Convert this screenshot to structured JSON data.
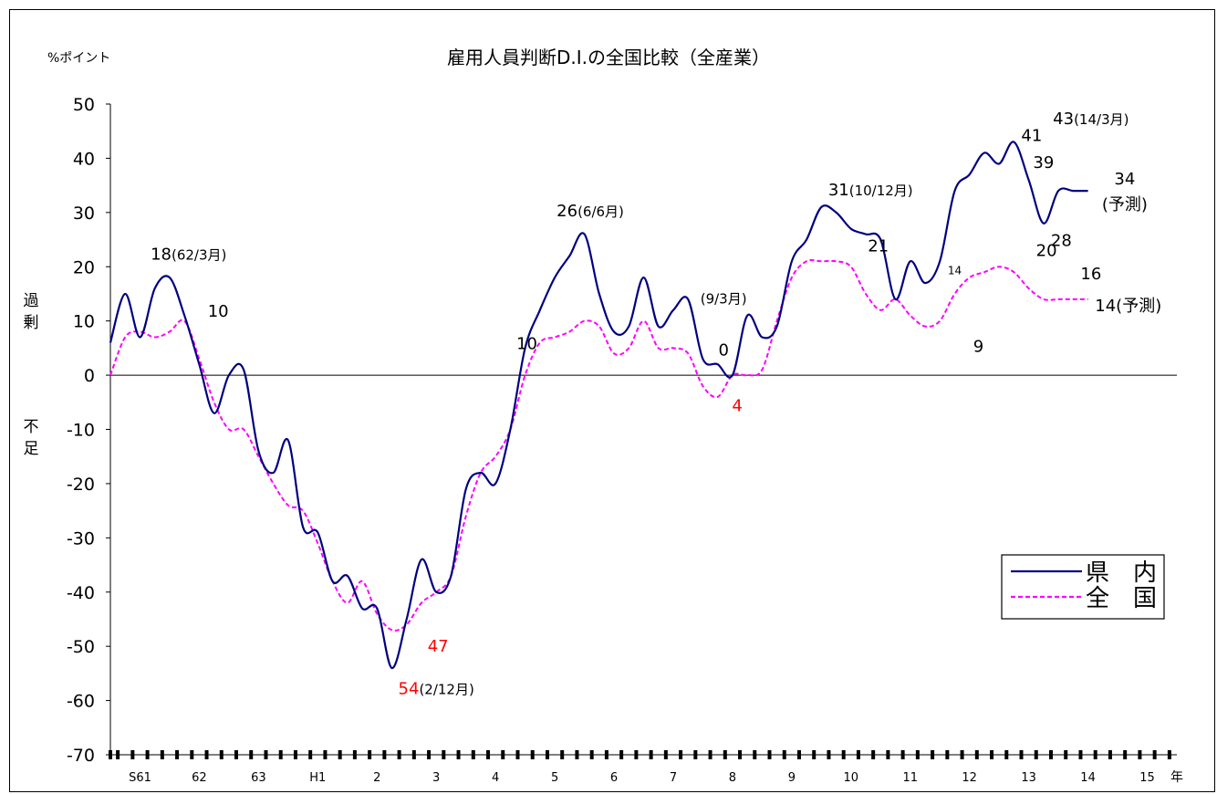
{
  "chart_data": {
    "type": "line",
    "title": "雇用人員判断D.I.の全国比較（全産業）",
    "yunit": "%ポイント",
    "ylabel_positive": "過剰",
    "ylabel_negative": "不足",
    "ylim": [
      -70,
      50
    ],
    "yticks": [
      50,
      40,
      30,
      20,
      10,
      0,
      -10,
      -20,
      -30,
      -40,
      -50,
      -60,
      -70
    ],
    "xlim": [
      0,
      18
    ],
    "xlabel_unit": "年",
    "xcategories": [
      "S61",
      "62",
      "63",
      "H1",
      "2",
      "3",
      "4",
      "5",
      "6",
      "7",
      "8",
      "9",
      "10",
      "11",
      "12",
      "13",
      "14",
      "15"
    ],
    "colors": {
      "prefecture": "#000080",
      "national": "#ff00ff",
      "negative_tick": "#ff0000",
      "low_label": "#ff0000"
    },
    "legend": {
      "position": "right",
      "items": [
        {
          "key": "prefecture",
          "label": "県　内"
        },
        {
          "key": "national",
          "label": "全　国"
        }
      ]
    },
    "series": [
      {
        "key": "prefecture",
        "name": "県　内",
        "style": "solid",
        "x": [
          0,
          0.25,
          0.5,
          0.75,
          1.0,
          1.25,
          1.5,
          1.75,
          2.0,
          2.25,
          2.5,
          2.75,
          3.0,
          3.25,
          3.5,
          3.75,
          4.0,
          4.25,
          4.5,
          4.75,
          5.0,
          5.25,
          5.5,
          5.75,
          6.0,
          6.25,
          6.5,
          6.75,
          7.0,
          7.25,
          7.5,
          7.75,
          8.0,
          8.25,
          8.5,
          8.75,
          9.0,
          9.25,
          9.5,
          9.75,
          10.0,
          10.25,
          10.5,
          10.75,
          11.0,
          11.25,
          11.5,
          11.75,
          12.0,
          12.25,
          12.5,
          12.75,
          13.0,
          13.25,
          13.5,
          13.75,
          14.0,
          14.25,
          14.5,
          14.75,
          15.0,
          15.25,
          15.5,
          15.75,
          16.0,
          16.25,
          16.5
        ],
        "y": [
          6,
          15,
          7,
          16,
          18,
          11,
          2,
          -7,
          0,
          1,
          -14,
          -18,
          -12,
          -28,
          -29,
          -38,
          -37,
          -43,
          -43,
          -54,
          -45,
          -34,
          -40,
          -37,
          -21,
          -18,
          -20,
          -10,
          5,
          12,
          18,
          22,
          26,
          15,
          8,
          9,
          18,
          9,
          12,
          14,
          3,
          2,
          0,
          11,
          7,
          9,
          21,
          25,
          31,
          30,
          27,
          26,
          25,
          14,
          21,
          17,
          21,
          34,
          37,
          41,
          39,
          43,
          36,
          28,
          34,
          34,
          34
        ]
      },
      {
        "key": "national",
        "name": "全　国",
        "style": "dashed",
        "x": [
          0,
          0.25,
          0.5,
          0.75,
          1.0,
          1.25,
          1.5,
          1.75,
          2.0,
          2.25,
          2.5,
          2.75,
          3.0,
          3.25,
          3.5,
          3.75,
          4.0,
          4.25,
          4.5,
          4.75,
          5.0,
          5.25,
          5.5,
          5.75,
          6.0,
          6.25,
          6.5,
          6.75,
          7.0,
          7.25,
          7.5,
          7.75,
          8.0,
          8.25,
          8.5,
          8.75,
          9.0,
          9.25,
          9.5,
          9.75,
          10.0,
          10.25,
          10.5,
          10.75,
          11.0,
          11.25,
          11.5,
          11.75,
          12.0,
          12.25,
          12.5,
          12.75,
          13.0,
          13.25,
          13.5,
          13.75,
          14.0,
          14.25,
          14.5,
          14.75,
          15.0,
          15.25,
          15.5,
          15.75,
          16.0,
          16.25,
          16.5
        ],
        "y": [
          0,
          7,
          8,
          7,
          8,
          10,
          3,
          -5,
          -10,
          -10,
          -15,
          -20,
          -24,
          -25,
          -31,
          -38,
          -42,
          -38,
          -44,
          -47,
          -46,
          -42,
          -40,
          -37,
          -26,
          -18,
          -15,
          -10,
          0,
          6,
          7,
          8,
          10,
          9,
          4,
          5,
          10,
          5,
          5,
          4,
          -2,
          -4,
          0,
          0,
          1,
          10,
          18,
          21,
          21,
          21,
          20,
          15,
          12,
          14,
          11,
          9,
          10,
          15,
          18,
          19,
          20,
          19,
          16,
          14,
          14,
          14,
          14
        ]
      }
    ],
    "annotations": [
      {
        "key": "a1",
        "text": "18",
        "suffix": "(62/3月)",
        "x": 1.32,
        "y": 21.3
      },
      {
        "key": "a2",
        "text": "10",
        "suffix": "",
        "x": 1.82,
        "y": 10.8
      },
      {
        "key": "a3",
        "text": "26",
        "suffix": "(6/6月)",
        "x": 8.1,
        "y": 29.3
      },
      {
        "key": "a4",
        "text": "10",
        "suffix": "",
        "x": 7.03,
        "y": 4.8
      },
      {
        "key": "a5",
        "text": "",
        "suffix": "(9/3月)",
        "x": 10.35,
        "y": 13.2
      },
      {
        "key": "a6",
        "text": "0",
        "suffix": "",
        "x": 10.35,
        "y": 3.6
      },
      {
        "key": "a7",
        "text": "4",
        "suffix": "",
        "x": 10.58,
        "y": -6.6
      },
      {
        "key": "a8",
        "text": "54",
        "suffix": "(2/12月)",
        "x": 5.5,
        "y": -58.8
      },
      {
        "key": "a9",
        "text": "47",
        "suffix": "",
        "x": 5.53,
        "y": -51
      },
      {
        "key": "a10",
        "text": "31",
        "suffix": "(10/12月)",
        "x": 12.83,
        "y": 33.2
      },
      {
        "key": "a11",
        "text": "21",
        "suffix": "",
        "x": 12.96,
        "y": 22.8
      },
      {
        "key": "a12",
        "text": "14",
        "suffix": "",
        "x": 14.25,
        "y": 18.6
      },
      {
        "key": "a13",
        "text": "9",
        "suffix": "",
        "x": 14.65,
        "y": 4.3
      },
      {
        "key": "a14",
        "text": "41",
        "suffix": "",
        "x": 15.55,
        "y": 43.2
      },
      {
        "key": "a15",
        "text": "39",
        "suffix": "",
        "x": 15.75,
        "y": 38.2
      },
      {
        "key": "a16",
        "text": "43",
        "suffix": "(14/3月)",
        "x": 16.55,
        "y": 46.3
      },
      {
        "key": "a17",
        "text": "28",
        "suffix": "",
        "x": 16.05,
        "y": 23.8
      },
      {
        "key": "a18",
        "text": "34",
        "suffix": "",
        "x": 17.12,
        "y": 35.2
      },
      {
        "key": "a19",
        "text": "(予測)",
        "suffix": "",
        "x": 17.12,
        "y": 30.5
      },
      {
        "key": "a20",
        "text": "20",
        "suffix": "",
        "x": 15.8,
        "y": 22
      },
      {
        "key": "a21",
        "text": "16",
        "suffix": "",
        "x": 16.55,
        "y": 17.7
      },
      {
        "key": "a22",
        "text": "14(予測)",
        "suffix": "",
        "x": 17.18,
        "y": 11.8
      }
    ]
  }
}
